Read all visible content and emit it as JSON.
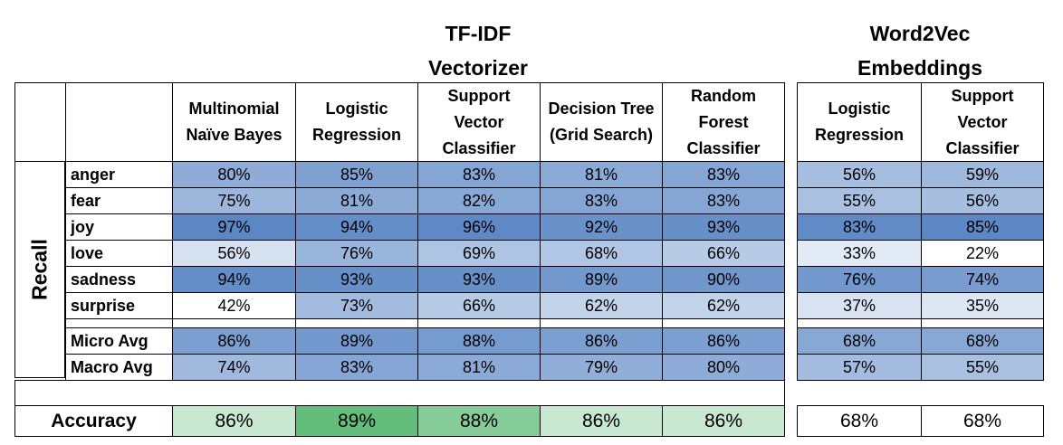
{
  "header": {
    "tfidf": [
      "TF-IDF",
      "Vectorizer"
    ],
    "w2v": [
      "Word2Vec",
      "Embeddings"
    ]
  },
  "row_group_label": "Recall",
  "columns": [
    {
      "group": "tfidf",
      "label": [
        "Multinomial",
        "Naïve Bayes"
      ]
    },
    {
      "group": "tfidf",
      "label": [
        "Logistic",
        "Regression"
      ]
    },
    {
      "group": "tfidf",
      "label": [
        "Support",
        "Vector",
        "Classifier"
      ]
    },
    {
      "group": "tfidf",
      "label": [
        "Decision Tree",
        "(Grid Search)"
      ]
    },
    {
      "group": "tfidf",
      "label": [
        "Random",
        "Forest",
        "Classifier"
      ]
    },
    {
      "group": "w2v",
      "label": [
        "Logistic",
        "Regression"
      ]
    },
    {
      "group": "w2v",
      "label": [
        "Support",
        "Vector",
        "Classifier"
      ]
    }
  ],
  "rows": [
    {
      "label": "anger",
      "values": [
        "80%",
        "85%",
        "83%",
        "81%",
        "83%",
        "56%",
        "59%"
      ]
    },
    {
      "label": "fear",
      "values": [
        "75%",
        "81%",
        "82%",
        "83%",
        "83%",
        "55%",
        "56%"
      ]
    },
    {
      "label": "joy",
      "values": [
        "97%",
        "94%",
        "96%",
        "92%",
        "93%",
        "83%",
        "85%"
      ]
    },
    {
      "label": "love",
      "values": [
        "56%",
        "76%",
        "69%",
        "68%",
        "66%",
        "33%",
        "22%"
      ]
    },
    {
      "label": "sadness",
      "values": [
        "94%",
        "93%",
        "93%",
        "89%",
        "90%",
        "76%",
        "74%"
      ]
    },
    {
      "label": "surprise",
      "values": [
        "42%",
        "73%",
        "66%",
        "62%",
        "62%",
        "37%",
        "35%"
      ]
    }
  ],
  "avg_rows": [
    {
      "label": "Micro Avg",
      "values": [
        "86%",
        "89%",
        "88%",
        "86%",
        "86%",
        "68%",
        "68%"
      ]
    },
    {
      "label": "Macro Avg",
      "values": [
        "74%",
        "83%",
        "81%",
        "79%",
        "80%",
        "57%",
        "55%"
      ]
    }
  ],
  "accuracy": {
    "label": "Accuracy",
    "values": [
      "86%",
      "89%",
      "88%",
      "86%",
      "86%",
      "68%",
      "68%"
    ]
  },
  "colors": {
    "recall_scale": [
      "#ffffff",
      "#5b87c5"
    ],
    "accuracy_scale": [
      "#ffffff",
      "#63be7b"
    ],
    "border": "#000000"
  }
}
